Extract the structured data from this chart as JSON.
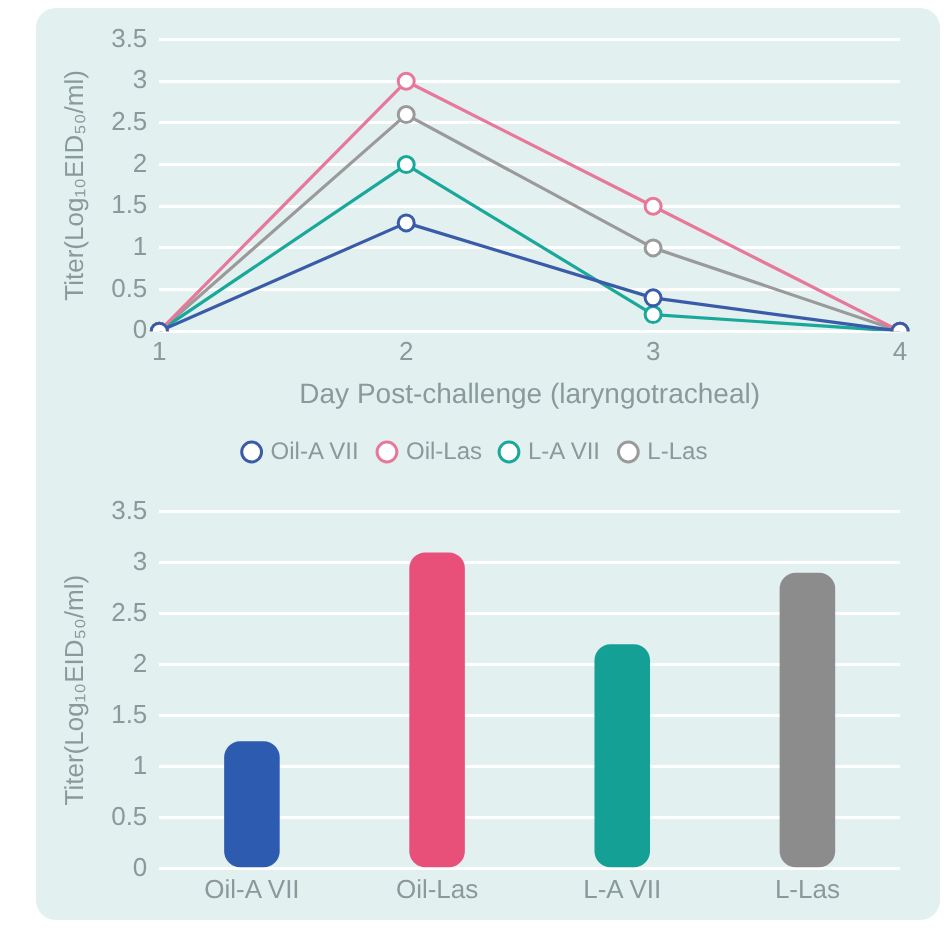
{
  "chart_data": [
    {
      "type": "line",
      "categories": [
        "1",
        "2",
        "3",
        "4"
      ],
      "xlabel": "Day Post-challenge (laryngotracheal)",
      "ylabel": "Titer(Log₁₀EID₅₀/ml)",
      "ylim": [
        0,
        3.5
      ],
      "yticks": [
        0,
        0.5,
        1,
        1.5,
        2,
        2.5,
        3,
        3.5
      ],
      "grid": "y",
      "legend": "bottom",
      "marker": "circle",
      "series": [
        {
          "name": "Oil-A VII",
          "color": "#3a5ca8",
          "values": [
            0,
            1.3,
            0.4,
            0
          ]
        },
        {
          "name": "Oil-Las",
          "color": "#e8789a",
          "values": [
            0,
            3.0,
            1.5,
            0
          ]
        },
        {
          "name": "L-A VII",
          "color": "#1aa89a",
          "values": [
            0,
            2.0,
            0.2,
            0
          ]
        },
        {
          "name": "L-Las",
          "color": "#9a9a9a",
          "values": [
            0,
            2.6,
            1.0,
            0
          ]
        }
      ]
    },
    {
      "type": "bar",
      "categories": [
        "Oil-A VII",
        "Oil-Las",
        "L-A VII",
        "L-Las"
      ],
      "ylabel": "Titer(Log₁₀EID₅₀/ml)",
      "ylim": [
        0,
        3.5
      ],
      "yticks": [
        0,
        0.5,
        1,
        1.5,
        2,
        2.5,
        3,
        3.5
      ],
      "grid": "y",
      "values": [
        1.25,
        3.1,
        2.2,
        2.9
      ],
      "colors": [
        "#2d5bb0",
        "#e8507a",
        "#14a094",
        "#8c8c8c"
      ]
    }
  ]
}
